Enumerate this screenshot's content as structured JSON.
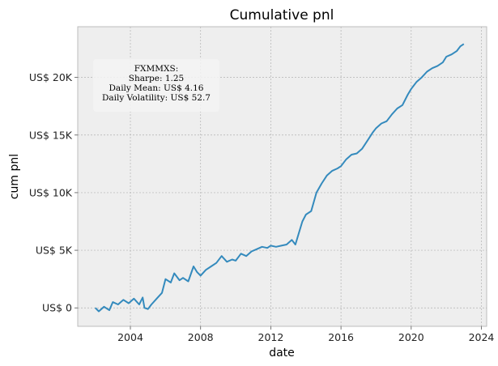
{
  "chart_data": {
    "type": "line",
    "title": "Cumulative pnl",
    "xlabel": "date",
    "ylabel": "cum pnl",
    "xlim": [
      2001.0,
      2024.3
    ],
    "ylim": [
      -1600,
      24400
    ],
    "x_ticks": [
      2004,
      2008,
      2012,
      2016,
      2020,
      2024
    ],
    "x_tick_labels": [
      "2004",
      "2008",
      "2012",
      "2016",
      "2020",
      "2024"
    ],
    "y_ticks": [
      0,
      5000,
      10000,
      15000,
      20000
    ],
    "y_tick_labels": [
      "US$ 0",
      "US$ 5K",
      "US$ 10K",
      "US$ 15K",
      "US$ 20K"
    ],
    "grid": true,
    "line_color": "#348ABD",
    "background_color": "#EEEEEE",
    "annotation": {
      "lines": [
        "FXMMXS:",
        "Sharpe: 1.25",
        "Daily Mean: US$ 4.16",
        "Daily Volatility: US$ 52.7"
      ],
      "placement": "top-left"
    },
    "series": [
      {
        "x": [
          2002.0,
          2002.2,
          2002.5,
          2002.8,
          2003.0,
          2003.3,
          2003.6,
          2003.9,
          2004.2,
          2004.5,
          2004.7,
          2004.8,
          2005.0,
          2005.2,
          2005.5,
          2005.8,
          2006.0,
          2006.3,
          2006.5,
          2006.8,
          2007.0,
          2007.3,
          2007.6,
          2007.8,
          2008.0,
          2008.3,
          2008.6,
          2008.9,
          2009.2,
          2009.5,
          2009.8,
          2010.0,
          2010.3,
          2010.6,
          2010.9,
          2011.2,
          2011.5,
          2011.8,
          2012.0,
          2012.3,
          2012.6,
          2012.9,
          2013.2,
          2013.4,
          2013.6,
          2013.8,
          2014.0,
          2014.3,
          2014.6,
          2014.9,
          2015.2,
          2015.5,
          2015.8,
          2016.0,
          2016.3,
          2016.6,
          2016.9,
          2017.2,
          2017.5,
          2017.8,
          2018.0,
          2018.3,
          2018.6,
          2018.9,
          2019.2,
          2019.5,
          2019.8,
          2020.0,
          2020.3,
          2020.6,
          2020.9,
          2021.2,
          2021.5,
          2021.8,
          2022.0,
          2022.3,
          2022.6,
          2022.8,
          2023.0
        ],
        "y": [
          0,
          -300,
          100,
          -200,
          500,
          300,
          700,
          400,
          800,
          300,
          900,
          0,
          -100,
          300,
          800,
          1300,
          2500,
          2200,
          3000,
          2400,
          2600,
          2300,
          3600,
          3100,
          2800,
          3300,
          3600,
          3900,
          4500,
          4000,
          4200,
          4100,
          4700,
          4500,
          4900,
          5100,
          5300,
          5200,
          5400,
          5300,
          5400,
          5500,
          5900,
          5500,
          6500,
          7500,
          8100,
          8400,
          10000,
          10800,
          11500,
          11900,
          12100,
          12300,
          12900,
          13300,
          13400,
          13800,
          14500,
          15200,
          15600,
          16000,
          16200,
          16800,
          17300,
          17600,
          18500,
          19000,
          19600,
          20000,
          20500,
          20800,
          21000,
          21300,
          21800,
          22000,
          22300,
          22700,
          22900
        ]
      }
    ]
  }
}
